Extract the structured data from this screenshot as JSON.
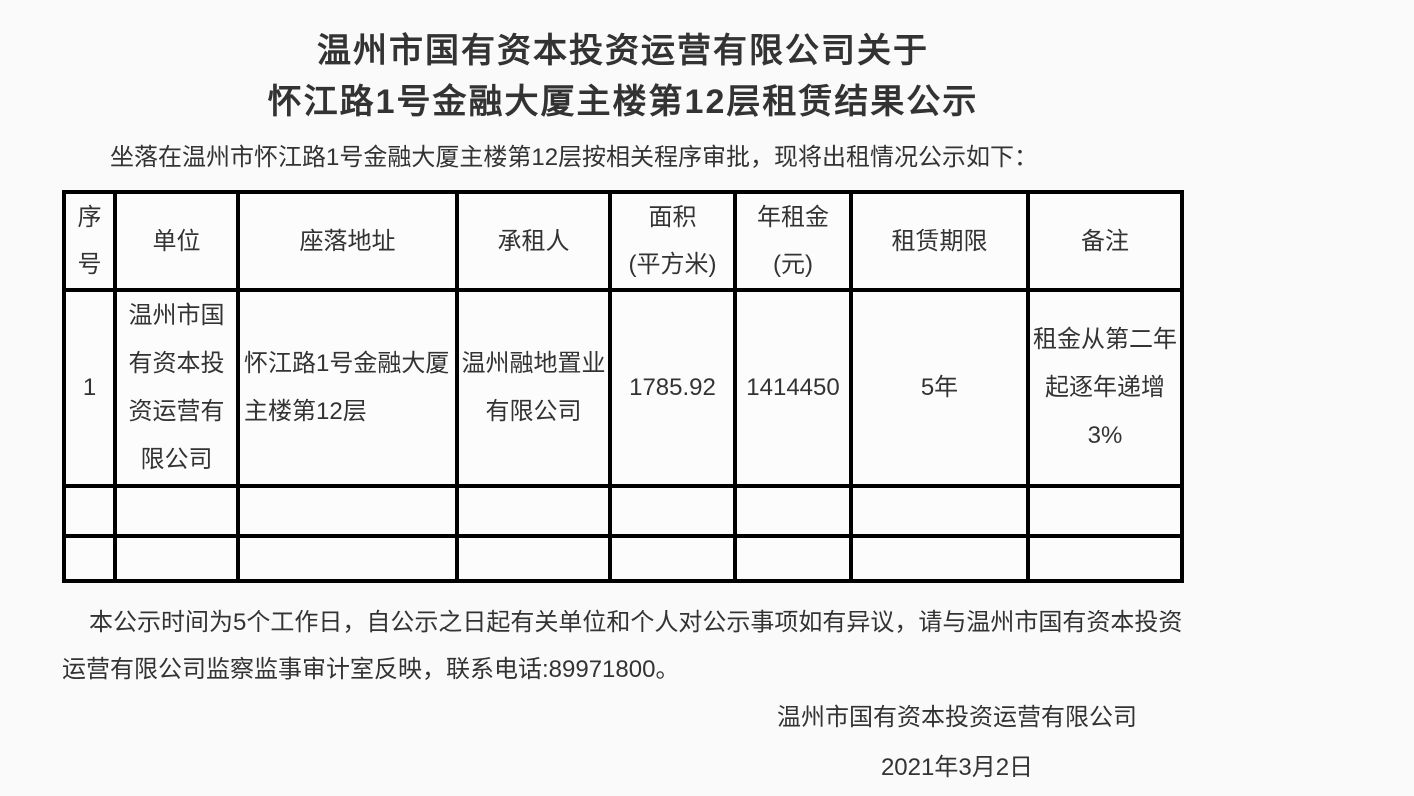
{
  "page": {
    "background_color": "#fafafa",
    "text_color": "#333333",
    "table_border_color": "#000000"
  },
  "title": {
    "line1": "温州市国有资本投资运营有限公司关于",
    "line2": "怀江路1号金融大厦主楼第12层租赁结果公示"
  },
  "intro": "坐落在温州市怀江路1号金融大厦主楼第12层按相关程序审批，现将出租情况公示如下：",
  "table": {
    "headers": [
      "序号",
      "单位",
      "座落地址",
      "承租人",
      "面积\n(平方米)",
      "年租金\n(元)",
      "租赁期限",
      "备注"
    ],
    "rows": [
      {
        "index": "1",
        "unit": "温州市国有资本投资运营有限公司",
        "address": "怀江路1号金融大厦主楼第12层",
        "lessee": "温州融地置业有限公司",
        "area": "1785.92",
        "annual_rent": "1414450",
        "lease_term": "5年",
        "remarks": "租金从第二年起逐年递增3%"
      },
      {
        "index": "",
        "unit": "",
        "address": "",
        "lessee": "",
        "area": "",
        "annual_rent": "",
        "lease_term": "",
        "remarks": ""
      },
      {
        "index": "",
        "unit": "",
        "address": "",
        "lessee": "",
        "area": "",
        "annual_rent": "",
        "lease_term": "",
        "remarks": ""
      }
    ]
  },
  "footer": {
    "notice": "本公示时间为5个工作日，自公示之日起有关单位和个人对公示事项如有异议，请与温州市国有资本投资运营有限公司监察监事审计室反映，联系电话:89971800。",
    "signature": "温州市国有资本投资运营有限公司",
    "date": "2021年3月2日"
  }
}
